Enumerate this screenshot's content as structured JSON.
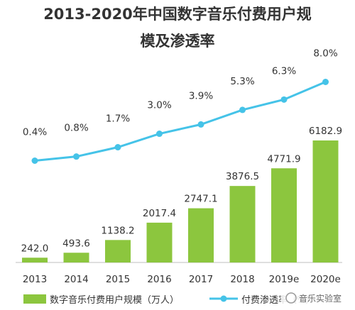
{
  "title_line1": "2013-2020年中国数字音乐付费用户规",
  "title_line2": "模及渗透率",
  "watermark": "音乐实验室",
  "chart_data": {
    "type": "bar",
    "categories": [
      "2013",
      "2014",
      "2015",
      "2016",
      "2017",
      "2018",
      "2019e",
      "2020e"
    ],
    "series": [
      {
        "name": "数字音乐付费用户规模（万人）",
        "type": "bar",
        "values": [
          242.0,
          493.6,
          1138.2,
          2017.4,
          2747.1,
          3876.5,
          4771.9,
          6182.9
        ],
        "labels": [
          "242.0",
          "493.6",
          "1138.2",
          "2017.4",
          "2747.1",
          "3876.5",
          "4771.9",
          "6182.9"
        ],
        "color": "#8cc63e"
      },
      {
        "name": "付费渗透率（%）",
        "type": "line",
        "values": [
          0.4,
          0.8,
          1.7,
          3.0,
          3.9,
          5.3,
          6.3,
          8.0
        ],
        "labels": [
          "0.4%",
          "0.8%",
          "1.7%",
          "3.0%",
          "3.9%",
          "5.3%",
          "6.3%",
          "8.0%"
        ],
        "color": "#45c3e8"
      }
    ],
    "legend_position": "bottom",
    "grid": false
  }
}
